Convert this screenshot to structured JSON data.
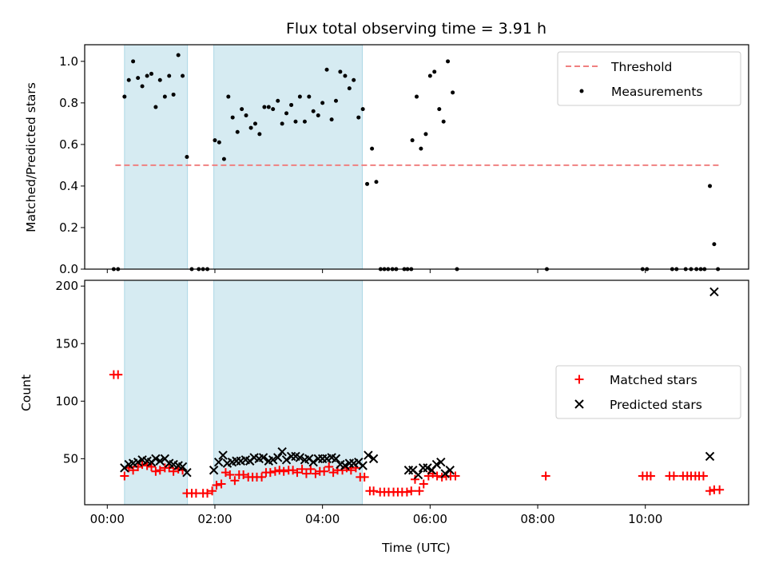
{
  "title": "Flux total observing time = 3.91 h",
  "colors": {
    "shade": "#add8e6",
    "threshold": "#f08080",
    "measurement": "#000000",
    "matched": "#ff0000",
    "predicted": "#000000"
  },
  "chart_data": [
    {
      "type": "scatter",
      "xlabel": "",
      "ylabel": "Matched/Predicted stars",
      "xlim_hours": [
        -0.42,
        11.92
      ],
      "ylim": [
        0,
        1.08
      ],
      "yticks": [
        {
          "v": 0.0,
          "label": "0.0"
        },
        {
          "v": 0.2,
          "label": "0.2"
        },
        {
          "v": 0.4,
          "label": "0.4"
        },
        {
          "v": 0.6,
          "label": "0.6"
        },
        {
          "v": 0.8,
          "label": "0.8"
        },
        {
          "v": 1.0,
          "label": "1.0"
        }
      ],
      "shaded_intervals_hours": [
        [
          0.32,
          1.49
        ],
        [
          1.98,
          4.74
        ]
      ],
      "threshold": {
        "name": "Threshold",
        "value": 0.5,
        "x_hours": [
          0.15,
          11.38
        ]
      },
      "legend": {
        "placement": "top-right",
        "entries": [
          "Threshold",
          "Measurements"
        ]
      },
      "series": [
        {
          "name": "Measurements",
          "marker": "dot",
          "points": [
            [
              0.12,
              0
            ],
            [
              0.2,
              0
            ],
            [
              0.32,
              0.83
            ],
            [
              0.4,
              0.91
            ],
            [
              0.48,
              1.0
            ],
            [
              0.57,
              0.92
            ],
            [
              0.65,
              0.88
            ],
            [
              0.74,
              0.93
            ],
            [
              0.82,
              0.94
            ],
            [
              0.9,
              0.78
            ],
            [
              0.98,
              0.91
            ],
            [
              1.07,
              0.83
            ],
            [
              1.15,
              0.93
            ],
            [
              1.23,
              0.84
            ],
            [
              1.32,
              1.03
            ],
            [
              1.4,
              0.93
            ],
            [
              1.48,
              0.54
            ],
            [
              1.57,
              0
            ],
            [
              1.7,
              0
            ],
            [
              1.78,
              0
            ],
            [
              1.86,
              0
            ],
            [
              2.0,
              0.62
            ],
            [
              2.08,
              0.61
            ],
            [
              2.17,
              0.53
            ],
            [
              2.25,
              0.83
            ],
            [
              2.33,
              0.73
            ],
            [
              2.42,
              0.66
            ],
            [
              2.5,
              0.77
            ],
            [
              2.58,
              0.74
            ],
            [
              2.67,
              0.68
            ],
            [
              2.75,
              0.7
            ],
            [
              2.83,
              0.65
            ],
            [
              2.92,
              0.78
            ],
            [
              3.0,
              0.78
            ],
            [
              3.08,
              0.77
            ],
            [
              3.17,
              0.81
            ],
            [
              3.25,
              0.7
            ],
            [
              3.33,
              0.75
            ],
            [
              3.42,
              0.79
            ],
            [
              3.5,
              0.71
            ],
            [
              3.58,
              0.83
            ],
            [
              3.67,
              0.71
            ],
            [
              3.75,
              0.83
            ],
            [
              3.83,
              0.76
            ],
            [
              3.92,
              0.74
            ],
            [
              4.0,
              0.8
            ],
            [
              4.08,
              0.96
            ],
            [
              4.17,
              0.72
            ],
            [
              4.25,
              0.81
            ],
            [
              4.33,
              0.95
            ],
            [
              4.42,
              0.93
            ],
            [
              4.5,
              0.87
            ],
            [
              4.58,
              0.91
            ],
            [
              4.67,
              0.73
            ],
            [
              4.75,
              0.77
            ],
            [
              4.83,
              0.41
            ],
            [
              4.92,
              0.58
            ],
            [
              5.0,
              0.42
            ],
            [
              5.08,
              0
            ],
            [
              5.15,
              0
            ],
            [
              5.22,
              0
            ],
            [
              5.3,
              0
            ],
            [
              5.37,
              0
            ],
            [
              5.52,
              0
            ],
            [
              5.58,
              0
            ],
            [
              5.65,
              0
            ],
            [
              5.67,
              0.62
            ],
            [
              5.75,
              0.83
            ],
            [
              5.83,
              0.58
            ],
            [
              5.92,
              0.65
            ],
            [
              6.0,
              0.93
            ],
            [
              6.08,
              0.95
            ],
            [
              6.17,
              0.77
            ],
            [
              6.25,
              0.71
            ],
            [
              6.33,
              1.0
            ],
            [
              6.42,
              0.85
            ],
            [
              6.5,
              0
            ],
            [
              8.17,
              0
            ],
            [
              9.95,
              0
            ],
            [
              10.03,
              0
            ],
            [
              10.5,
              0
            ],
            [
              10.58,
              0
            ],
            [
              10.75,
              0
            ],
            [
              10.85,
              0
            ],
            [
              10.95,
              0
            ],
            [
              11.03,
              0
            ],
            [
              11.1,
              0
            ],
            [
              11.2,
              0.4
            ],
            [
              11.28,
              0.12
            ],
            [
              11.35,
              0
            ]
          ]
        }
      ]
    },
    {
      "type": "scatter",
      "xlabel": "Time (UTC)",
      "ylabel": "Count",
      "xlim_hours": [
        -0.42,
        11.92
      ],
      "ylim": [
        10,
        205
      ],
      "yticks": [
        {
          "v": 50,
          "label": "50"
        },
        {
          "v": 100,
          "label": "100"
        },
        {
          "v": 150,
          "label": "150"
        },
        {
          "v": 200,
          "label": "200"
        }
      ],
      "xticks": [
        {
          "v": 0,
          "label": "00:00"
        },
        {
          "v": 2,
          "label": "02:00"
        },
        {
          "v": 4,
          "label": "04:00"
        },
        {
          "v": 6,
          "label": "06:00"
        },
        {
          "v": 8,
          "label": "08:00"
        },
        {
          "v": 10,
          "label": "10:00"
        }
      ],
      "shaded_intervals_hours": [
        [
          0.32,
          1.49
        ],
        [
          1.98,
          4.74
        ]
      ],
      "legend": {
        "placement": "center-right",
        "entries": [
          "Matched stars",
          "Predicted stars"
        ]
      },
      "series": [
        {
          "name": "Matched stars",
          "marker": "plus",
          "points": [
            [
              0.12,
              123
            ],
            [
              0.2,
              123
            ],
            [
              0.32,
              35
            ],
            [
              0.4,
              42
            ],
            [
              0.48,
              40
            ],
            [
              0.57,
              43
            ],
            [
              0.65,
              45
            ],
            [
              0.74,
              44
            ],
            [
              0.82,
              43
            ],
            [
              0.9,
              39
            ],
            [
              0.98,
              40
            ],
            [
              1.07,
              42
            ],
            [
              1.15,
              42
            ],
            [
              1.23,
              39
            ],
            [
              1.32,
              41
            ],
            [
              1.4,
              40
            ],
            [
              1.48,
              20
            ],
            [
              1.57,
              20
            ],
            [
              1.65,
              20
            ],
            [
              1.78,
              20
            ],
            [
              1.86,
              20
            ],
            [
              1.95,
              22
            ],
            [
              2.03,
              27
            ],
            [
              2.12,
              28
            ],
            [
              2.2,
              38
            ],
            [
              2.28,
              36
            ],
            [
              2.37,
              31
            ],
            [
              2.45,
              36
            ],
            [
              2.53,
              36
            ],
            [
              2.62,
              34
            ],
            [
              2.7,
              34
            ],
            [
              2.78,
              34
            ],
            [
              2.87,
              34
            ],
            [
              2.95,
              38
            ],
            [
              3.03,
              38
            ],
            [
              3.12,
              39
            ],
            [
              3.2,
              40
            ],
            [
              3.28,
              39
            ],
            [
              3.37,
              40
            ],
            [
              3.45,
              40
            ],
            [
              3.53,
              38
            ],
            [
              3.62,
              41
            ],
            [
              3.7,
              37
            ],
            [
              3.78,
              41
            ],
            [
              3.87,
              37
            ],
            [
              3.95,
              39
            ],
            [
              4.03,
              39
            ],
            [
              4.12,
              43
            ],
            [
              4.2,
              38
            ],
            [
              4.28,
              40
            ],
            [
              4.37,
              40
            ],
            [
              4.45,
              42
            ],
            [
              4.53,
              40
            ],
            [
              4.62,
              42
            ],
            [
              4.7,
              34
            ],
            [
              4.78,
              34
            ],
            [
              4.88,
              22
            ],
            [
              4.95,
              22
            ],
            [
              5.07,
              21
            ],
            [
              5.15,
              21
            ],
            [
              5.23,
              21
            ],
            [
              5.32,
              21
            ],
            [
              5.4,
              21
            ],
            [
              5.48,
              21
            ],
            [
              5.57,
              21
            ],
            [
              5.65,
              22
            ],
            [
              5.72,
              32
            ],
            [
              5.8,
              22
            ],
            [
              5.88,
              28
            ],
            [
              5.97,
              35
            ],
            [
              6.05,
              37
            ],
            [
              6.13,
              35
            ],
            [
              6.22,
              34
            ],
            [
              6.3,
              35
            ],
            [
              6.38,
              35
            ],
            [
              6.47,
              35
            ],
            [
              8.15,
              35
            ],
            [
              9.95,
              35
            ],
            [
              10.03,
              35
            ],
            [
              10.1,
              35
            ],
            [
              10.45,
              35
            ],
            [
              10.53,
              35
            ],
            [
              10.7,
              35
            ],
            [
              10.78,
              35
            ],
            [
              10.85,
              35
            ],
            [
              10.93,
              35
            ],
            [
              11.0,
              35
            ],
            [
              11.08,
              35
            ],
            [
              11.2,
              22
            ],
            [
              11.28,
              23
            ],
            [
              11.38,
              23
            ]
          ]
        },
        {
          "name": "Predicted stars",
          "marker": "x",
          "points": [
            [
              0.32,
              42
            ],
            [
              0.4,
              45
            ],
            [
              0.48,
              46
            ],
            [
              0.57,
              47
            ],
            [
              0.65,
              49
            ],
            [
              0.74,
              48
            ],
            [
              0.82,
              47
            ],
            [
              0.9,
              50
            ],
            [
              0.98,
              48
            ],
            [
              1.07,
              50
            ],
            [
              1.15,
              46
            ],
            [
              1.23,
              45
            ],
            [
              1.32,
              44
            ],
            [
              1.4,
              43
            ],
            [
              1.48,
              38
            ],
            [
              1.98,
              40
            ],
            [
              2.07,
              47
            ],
            [
              2.15,
              53
            ],
            [
              2.23,
              46
            ],
            [
              2.32,
              47
            ],
            [
              2.4,
              48
            ],
            [
              2.48,
              48
            ],
            [
              2.57,
              49
            ],
            [
              2.65,
              48
            ],
            [
              2.73,
              51
            ],
            [
              2.82,
              50
            ],
            [
              2.9,
              51
            ],
            [
              3.0,
              48
            ],
            [
              3.08,
              49
            ],
            [
              3.17,
              51
            ],
            [
              3.25,
              56
            ],
            [
              3.33,
              49
            ],
            [
              3.42,
              52
            ],
            [
              3.5,
              52
            ],
            [
              3.58,
              51
            ],
            [
              3.67,
              49
            ],
            [
              3.75,
              50
            ],
            [
              3.83,
              47
            ],
            [
              3.92,
              50
            ],
            [
              4.0,
              50
            ],
            [
              4.08,
              50
            ],
            [
              4.17,
              51
            ],
            [
              4.25,
              50
            ],
            [
              4.33,
              45
            ],
            [
              4.42,
              44
            ],
            [
              4.5,
              46
            ],
            [
              4.58,
              46
            ],
            [
              4.67,
              47
            ],
            [
              4.75,
              44
            ],
            [
              4.85,
              53
            ],
            [
              4.95,
              50
            ],
            [
              5.6,
              40
            ],
            [
              5.68,
              40
            ],
            [
              5.78,
              36
            ],
            [
              5.87,
              42
            ],
            [
              5.95,
              42
            ],
            [
              6.03,
              40
            ],
            [
              6.12,
              45
            ],
            [
              6.2,
              47
            ],
            [
              6.28,
              37
            ],
            [
              6.37,
              40
            ],
            [
              11.2,
              52
            ],
            [
              11.28,
              195
            ]
          ]
        }
      ]
    }
  ]
}
